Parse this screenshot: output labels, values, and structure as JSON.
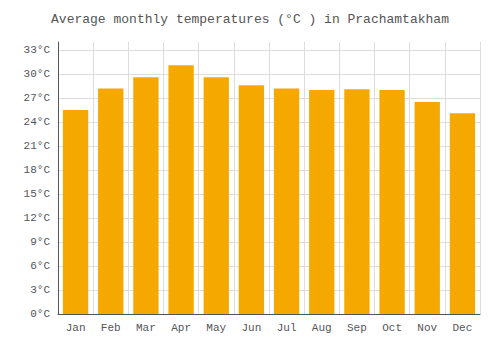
{
  "chart_data": {
    "type": "bar",
    "title": "Average monthly temperatures (°C ) in Prachamtakham",
    "categories": [
      "Jan",
      "Feb",
      "Mar",
      "Apr",
      "May",
      "Jun",
      "Jul",
      "Aug",
      "Sep",
      "Oct",
      "Nov",
      "Dec"
    ],
    "values": [
      25.5,
      28.2,
      29.6,
      31.1,
      29.6,
      28.6,
      28.2,
      28.0,
      28.1,
      28.0,
      26.5,
      25.1
    ],
    "color": "#F5A800",
    "ylim": [
      0,
      34
    ],
    "yticks": [
      {
        "value": 0,
        "label": "0°C"
      },
      {
        "value": 3,
        "label": "3°C"
      },
      {
        "value": 6,
        "label": "6°C"
      },
      {
        "value": 9,
        "label": "9°C"
      },
      {
        "value": 12,
        "label": "12°C"
      },
      {
        "value": 15,
        "label": "15°C"
      },
      {
        "value": 18,
        "label": "18°C"
      },
      {
        "value": 21,
        "label": "21°C"
      },
      {
        "value": 24,
        "label": "24°C"
      },
      {
        "value": 27,
        "label": "27°C"
      },
      {
        "value": 30,
        "label": "30°C"
      },
      {
        "value": 33,
        "label": "33°C"
      }
    ],
    "grid": true
  }
}
